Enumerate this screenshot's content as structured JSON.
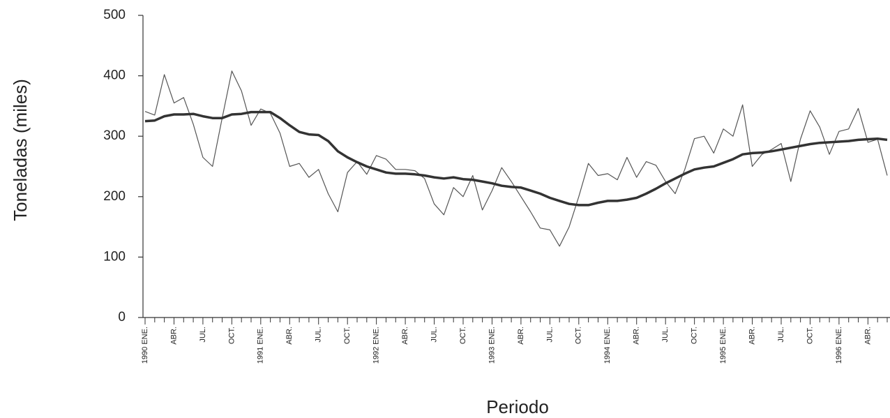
{
  "chart_data": {
    "type": "line",
    "x_label": "Periodo",
    "y_label": "Toneladas (miles)",
    "categories": [
      "1990 ENE.",
      null,
      null,
      "ABR.",
      null,
      null,
      "JUL.",
      null,
      null,
      "OCT.",
      null,
      null,
      "1991 ENE.",
      null,
      null,
      "ABR.",
      null,
      null,
      "JUL.",
      null,
      null,
      "OCT.",
      null,
      null,
      "1992 ENE.",
      null,
      null,
      "ABR.",
      null,
      null,
      "JUL.",
      null,
      null,
      "OCT.",
      null,
      null,
      "1993 ENE.",
      null,
      null,
      "ABR.",
      null,
      null,
      "JUL.",
      null,
      null,
      "OCT.",
      null,
      null,
      "1994 ENE.",
      null,
      null,
      "ABR.",
      null,
      null,
      "JUL.",
      null,
      null,
      "OCT.",
      null,
      null,
      "1995 ENE.",
      null,
      null,
      "ABR.",
      null,
      null,
      "JUL.",
      null,
      null,
      "OCT.",
      null,
      null,
      "1996 ENE.",
      null,
      null,
      "ABR.",
      null,
      null
    ],
    "series": [
      {
        "color": "#555555",
        "width": 1.2,
        "values": [
          341,
          335,
          402,
          355,
          364,
          320,
          265,
          250,
          330,
          408,
          375,
          318,
          345,
          338,
          305,
          250,
          255,
          232,
          245,
          205,
          175,
          240,
          258,
          237,
          268,
          262,
          245,
          245,
          243,
          230,
          188,
          170,
          215,
          200,
          235,
          178,
          210,
          248,
          225,
          200,
          175,
          148,
          145,
          118,
          150,
          200,
          255,
          235,
          238,
          228,
          265,
          232,
          258,
          252,
          225,
          205,
          245,
          296,
          300,
          272,
          312,
          300,
          352,
          250,
          270,
          278,
          288,
          225,
          295,
          342,
          315,
          270,
          308,
          312,
          346,
          290,
          295,
          235
        ]
      },
      {
        "color": "#333333",
        "width": 3.5,
        "values": [
          325,
          326,
          333,
          336,
          336,
          337,
          333,
          330,
          330,
          336,
          337,
          340,
          340,
          340,
          330,
          318,
          307,
          303,
          302,
          292,
          275,
          265,
          257,
          250,
          245,
          240,
          238,
          238,
          237,
          235,
          232,
          230,
          232,
          229,
          228,
          225,
          222,
          218,
          216,
          215,
          210,
          205,
          198,
          193,
          188,
          186,
          186,
          190,
          193,
          193,
          195,
          198,
          205,
          213,
          222,
          230,
          238,
          245,
          248,
          250,
          256,
          262,
          270,
          272,
          273,
          275,
          278,
          281,
          284,
          287,
          289,
          290,
          291,
          292,
          294,
          295,
          296,
          294
        ]
      }
    ],
    "ylim": [
      0,
      500
    ],
    "yticks": [
      0,
      100,
      200,
      300,
      400,
      500
    ],
    "grid": false
  }
}
